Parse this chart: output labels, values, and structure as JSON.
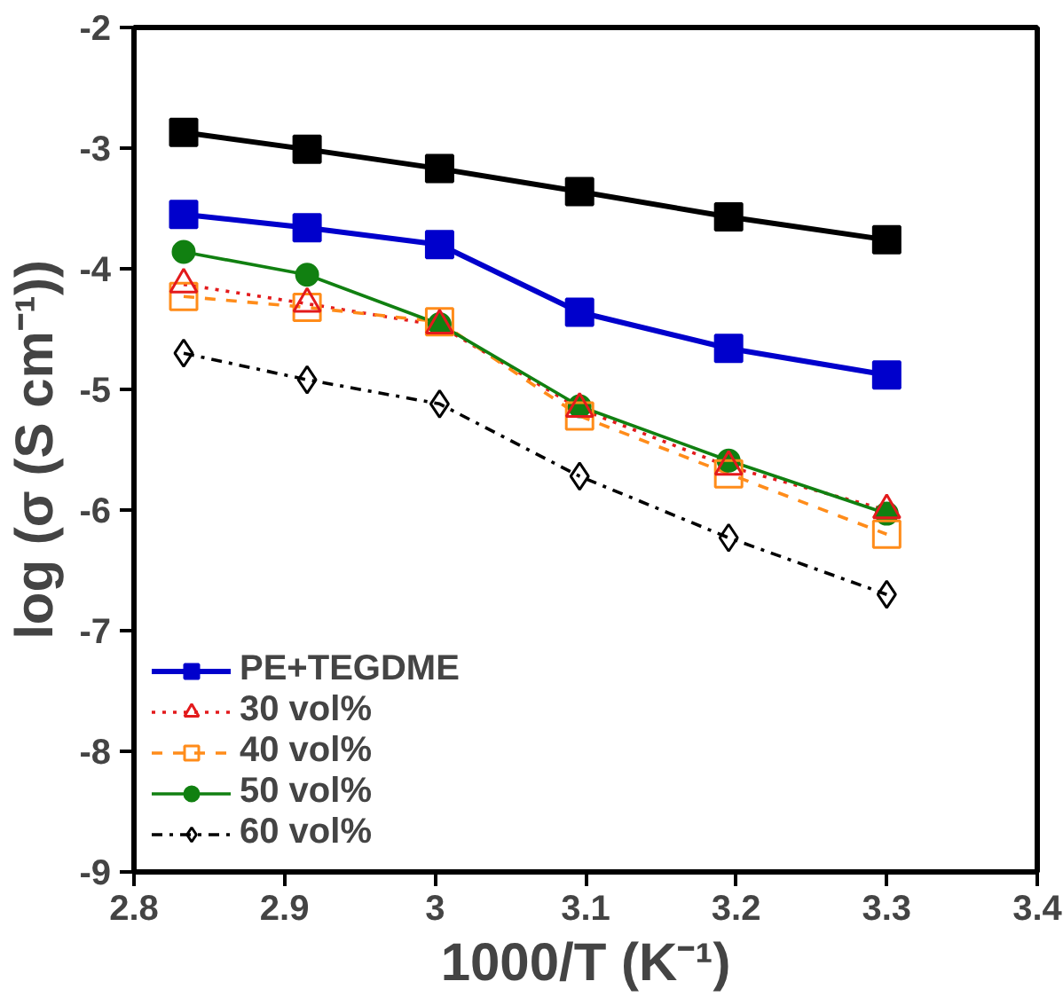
{
  "chart_data": {
    "type": "line",
    "xlabel": "1000/T (K⁻¹)",
    "ylabel": "log (σ (S cm⁻¹))",
    "x": [
      2.833,
      2.915,
      3.003,
      3.096,
      3.195,
      3.3
    ],
    "xlim": [
      2.8,
      3.4
    ],
    "xticks": [
      2.8,
      2.9,
      3,
      3.1,
      3.2,
      3.3,
      3.4
    ],
    "ylim": [
      -9,
      -2
    ],
    "yticks": [
      -9,
      -8,
      -7,
      -6,
      -5,
      -4,
      -3,
      -2
    ],
    "grid": false,
    "legend": "bottom left",
    "series": [
      {
        "color": "#000000",
        "marker": "square",
        "line_style": "solid",
        "values": [
          -2.87,
          -3.01,
          -3.17,
          -3.36,
          -3.57,
          -3.76
        ]
      },
      {
        "name": "PE+TEGDME",
        "color": "#0000cc",
        "marker": "square",
        "line_style": "solid",
        "values": [
          -3.55,
          -3.66,
          -3.8,
          -4.36,
          -4.66,
          -4.88
        ]
      },
      {
        "name": "30 vol%",
        "color": "#e31a1c",
        "marker": "triangle",
        "line_style": "dotted",
        "values": [
          -4.13,
          -4.29,
          -4.47,
          -5.16,
          -5.64,
          -6.0
        ]
      },
      {
        "name": "40 vol%",
        "color": "#ff8c1a",
        "marker": "square",
        "line_style": "dashed",
        "values": [
          -4.23,
          -4.32,
          -4.44,
          -5.22,
          -5.7,
          -6.2
        ]
      },
      {
        "name": "50 vol%",
        "color": "#118011",
        "marker": "circle",
        "line_style": "solid",
        "values": [
          -3.86,
          -4.05,
          -4.46,
          -5.14,
          -5.59,
          -6.03
        ]
      },
      {
        "name": "60 vol%",
        "color": "#000000",
        "marker": "diamond",
        "line_style": "dashdot",
        "values": [
          -4.7,
          -4.92,
          -5.12,
          -5.72,
          -6.23,
          -6.7
        ]
      }
    ]
  }
}
